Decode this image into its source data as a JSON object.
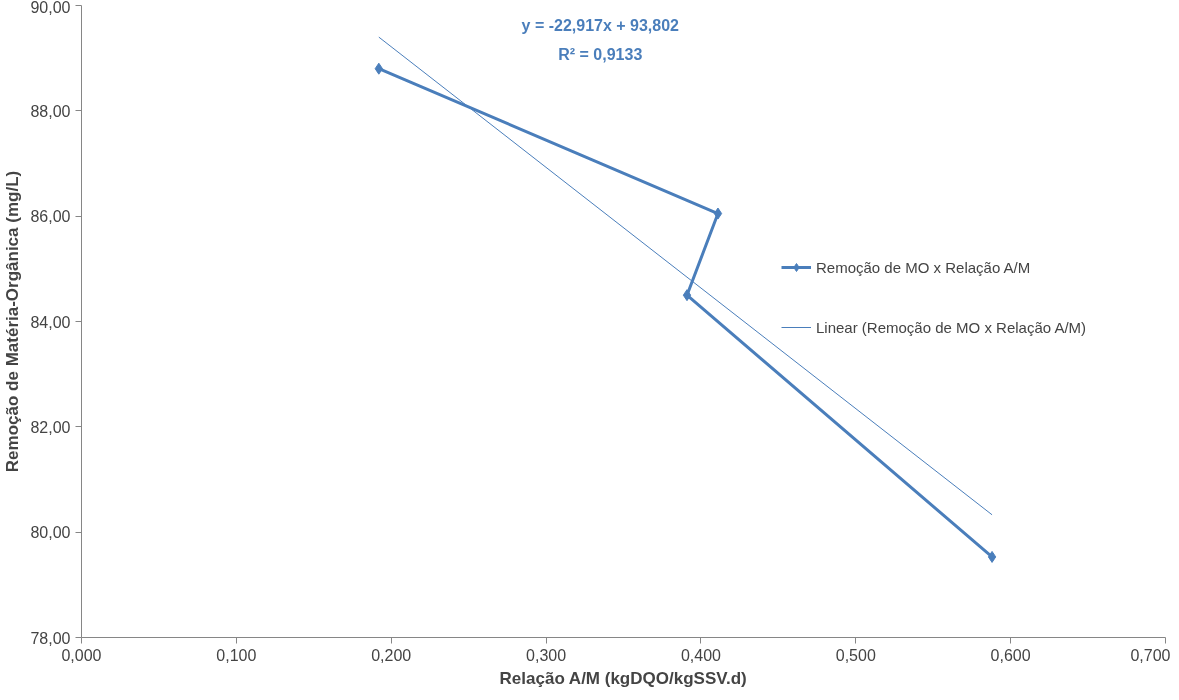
{
  "chart_data": {
    "type": "line",
    "xlabel": "Relação A/M (kgDQO/kgSSV.d)",
    "ylabel": "Remoção de Matéria-Orgânica (mg/L)",
    "series": [
      {
        "name": "Remoção de MO x Relação A/M",
        "color": "#4a7ebb",
        "x": [
          0.192,
          0.411,
          0.391,
          0.588
        ],
        "values": [
          88.8,
          86.05,
          84.5,
          79.53
        ],
        "marker": "diamond"
      },
      {
        "name": "Linear (Remoção de MO x Relação A/M)",
        "type": "line",
        "color": "#4a7ebb",
        "x": [
          0.192,
          0.588
        ],
        "values": [
          89.4,
          80.33
        ],
        "marker": "none"
      }
    ],
    "annotations": [
      "y = -22,917x + 93,802",
      "R² = 0,9133"
    ],
    "xlim": [
      0,
      0.7
    ],
    "xticks": [
      {
        "value": 0,
        "label": "0,000"
      },
      {
        "value": 0.1,
        "label": "0,100"
      },
      {
        "value": 0.2,
        "label": "0,200"
      },
      {
        "value": 0.3,
        "label": "0,300"
      },
      {
        "value": 0.4,
        "label": "0,400"
      },
      {
        "value": 0.5,
        "label": "0,500"
      },
      {
        "value": 0.6,
        "label": "0,600"
      },
      {
        "value": 0.7,
        "label": "0,700"
      }
    ],
    "ylim": [
      78,
      90
    ],
    "yticks": [
      {
        "value": 78,
        "label": "78,00"
      },
      {
        "value": 80,
        "label": "80,00"
      },
      {
        "value": 82,
        "label": "82,00"
      },
      {
        "value": 84,
        "label": "84,00"
      },
      {
        "value": 86,
        "label": "86,00"
      },
      {
        "value": 88,
        "label": "88,00"
      },
      {
        "value": 90,
        "label": "90,00"
      }
    ],
    "grid": false,
    "legend": "right"
  }
}
